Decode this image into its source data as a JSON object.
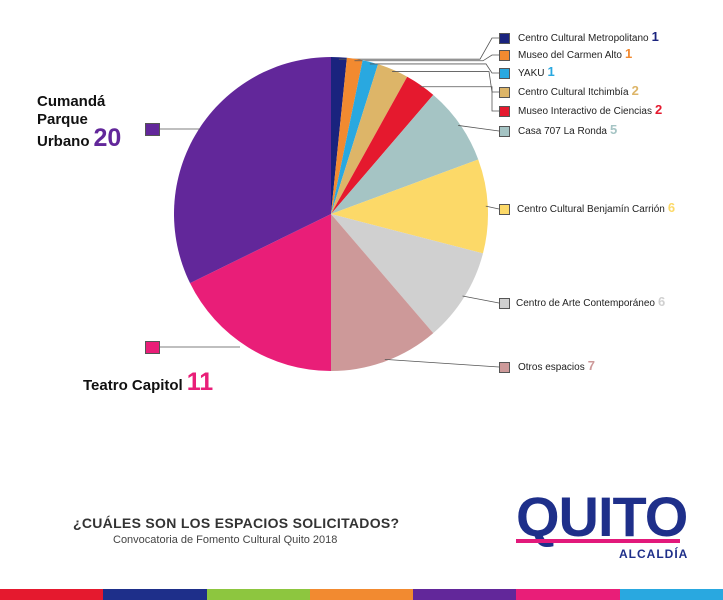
{
  "chart_data": {
    "type": "pie",
    "title": "¿CUÁLES SON LOS ESPACIOS SOLICITADOS?",
    "subtitle": "Convocatoria de Fomento Cultural Quito 2018",
    "slices": [
      {
        "label": "Centro Cultural Metropolitano",
        "value": 1,
        "color": "#1a237e"
      },
      {
        "label": "Museo del Carmen Alto",
        "value": 1,
        "color": "#f28a30"
      },
      {
        "label": "YAKU",
        "value": 1,
        "color": "#29a8e0"
      },
      {
        "label": "Centro Cultural Itchimbía",
        "value": 2,
        "color": "#ddb568"
      },
      {
        "label": "Museo Interactivo de Ciencias",
        "value": 2,
        "color": "#e5192e"
      },
      {
        "label": "Casa 707 La Ronda",
        "value": 5,
        "color": "#a5c4c4"
      },
      {
        "label": "Centro Cultural Benjamín Carrión",
        "value": 6,
        "color": "#fcd968"
      },
      {
        "label": "Centro de Arte Contemporáneo",
        "value": 6,
        "color": "#d0d0d0"
      },
      {
        "label": "Otros espacios",
        "value": 7,
        "color": "#cd9999"
      },
      {
        "label": "Teatro Capitol",
        "value": 11,
        "color": "#e91e78"
      },
      {
        "label": "Cumandá Parque Urbano",
        "value": 20,
        "color": "#62279a"
      }
    ]
  },
  "big_labels": {
    "cumanda_lines": [
      "Cumandá",
      "Parque",
      "Urbano"
    ],
    "cumanda_value": "20",
    "capitol_label": "Teatro Capitol",
    "capitol_value": "11"
  },
  "logo": {
    "text": "QUITO",
    "sub": "ALCALDÍA",
    "color": "#1e2f8a",
    "accent": "#e2197b"
  },
  "band_colors": [
    "#e5192e",
    "#1e2f8a",
    "#8dc63f",
    "#f28a30",
    "#62279a",
    "#e91e78",
    "#29a8e0"
  ]
}
